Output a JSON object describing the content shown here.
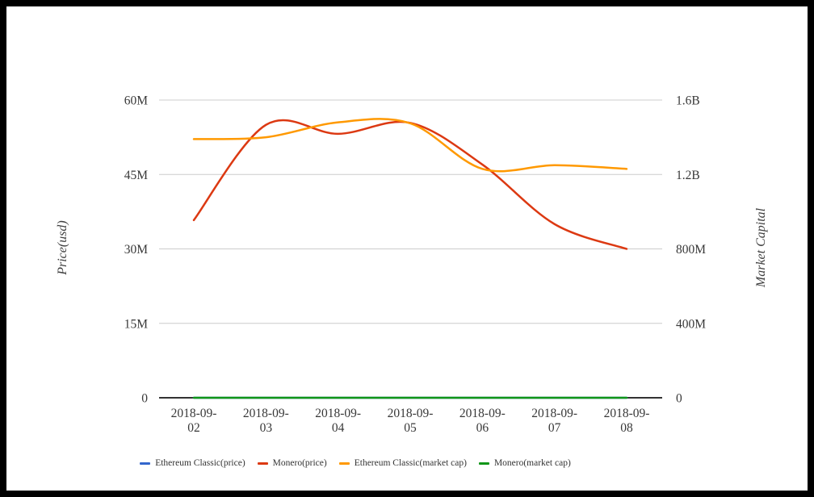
{
  "page": {
    "background": "#ffffff",
    "frame_color": "#000000"
  },
  "chart_data": {
    "type": "line",
    "curve": "smooth",
    "grid_on": true,
    "legend_position": "bottom",
    "x_axis": {
      "categories": [
        "2018-09-02",
        "2018-09-03",
        "2018-09-04",
        "2018-09-05",
        "2018-09-06",
        "2018-09-07",
        "2018-09-08"
      ],
      "tick_label_lines": [
        [
          "2018-09-",
          "02"
        ],
        [
          "2018-09-",
          "03"
        ],
        [
          "2018-09-",
          "04"
        ],
        [
          "2018-09-",
          "05"
        ],
        [
          "2018-09-",
          "06"
        ],
        [
          "2018-09-",
          "07"
        ],
        [
          "2018-09-",
          "08"
        ]
      ]
    },
    "y_axis_left": {
      "title": "Price(usd)",
      "tick_labels": [
        "0",
        "15M",
        "30M",
        "45M",
        "60M"
      ],
      "tick_values": [
        0,
        15000000,
        30000000,
        45000000,
        60000000
      ],
      "range": [
        0,
        60000000
      ]
    },
    "y_axis_right": {
      "title": "Market Capital",
      "tick_labels": [
        "0",
        "400M",
        "800M",
        "1.2B",
        "1.6B"
      ],
      "tick_values": [
        0,
        400000000,
        800000000,
        1200000000,
        1600000000
      ],
      "range": [
        0,
        1600000000
      ]
    },
    "series": [
      {
        "name": "Ethereum Classic(price)",
        "axis": "left",
        "color": "#3366CC",
        "values": [
          0,
          0,
          0,
          0,
          0,
          0,
          0
        ]
      },
      {
        "name": "Monero(price)",
        "axis": "left",
        "color": "#DC3912",
        "values": [
          35800000,
          55000000,
          53200000,
          55400000,
          47000000,
          35000000,
          30000000
        ]
      },
      {
        "name": "Ethereum Classic(market cap)",
        "axis": "right",
        "color": "#FF9900",
        "values": [
          1390000000,
          1400000000,
          1480000000,
          1475000000,
          1230000000,
          1250000000,
          1230000000
        ]
      },
      {
        "name": "Monero(market cap)",
        "axis": "right",
        "color": "#109618",
        "values": [
          0,
          0,
          0,
          0,
          0,
          0,
          0
        ]
      }
    ],
    "style": {
      "gridline_color": "#cccccc",
      "baseline_color": "#333333",
      "tick_text_color": "#383838"
    }
  }
}
